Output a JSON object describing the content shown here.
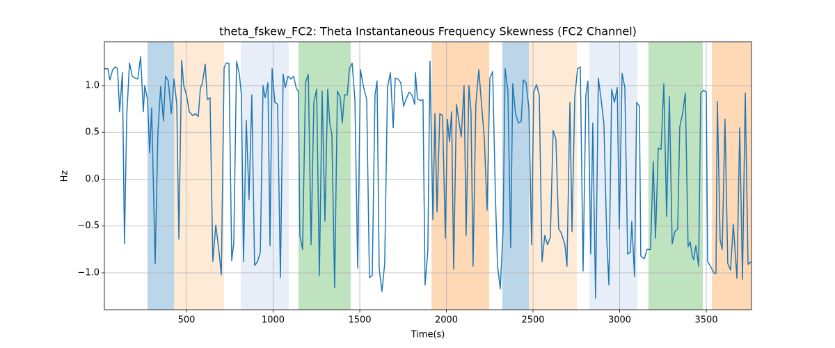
{
  "chart_data": {
    "type": "line",
    "title": "theta_fskew_FC2: Theta Instantaneous Frequency Skewness (FC2 Channel)",
    "x_label": "Time(s)",
    "y_label": "Hz",
    "color": "#1f77b4",
    "grid": true,
    "xlim": [
      26,
      3761
    ],
    "ylim": [
      -1.394,
      1.468
    ],
    "xticks": [
      500,
      1000,
      1500,
      2000,
      2500,
      3000,
      3500
    ],
    "yticks": [
      {
        "value": -1,
        "label": "−1.0"
      },
      {
        "value": -0.5,
        "label": "−0.5"
      },
      {
        "value": 0,
        "label": "0.0"
      },
      {
        "value": 0.5,
        "label": "0.5"
      },
      {
        "value": 1,
        "label": "1.0"
      }
    ],
    "shaded_regions": [
      {
        "start": 275,
        "end": 428,
        "color": "#1f77b4"
      },
      {
        "start": 428,
        "end": 717,
        "color": "#ffbb78"
      },
      {
        "start": 813,
        "end": 1090,
        "color": "#aec7e8"
      },
      {
        "start": 1146,
        "end": 1448,
        "color": "#2ca02c"
      },
      {
        "start": 1914,
        "end": 2247,
        "color": "#ff7f0e"
      },
      {
        "start": 2323,
        "end": 2476,
        "color": "#1f77b4"
      },
      {
        "start": 2476,
        "end": 2753,
        "color": "#ffbb78"
      },
      {
        "start": 2825,
        "end": 3102,
        "color": "#aec7e8"
      },
      {
        "start": 3166,
        "end": 3480,
        "color": "#2ca02c"
      },
      {
        "start": 3532,
        "end": 3761,
        "color": "#ff7f0e"
      }
    ],
    "x": [
      26,
      46,
      58,
      74,
      90,
      102,
      114,
      130,
      142,
      155,
      171,
      187,
      203,
      219,
      235,
      251,
      259,
      275,
      287,
      299,
      319,
      335,
      351,
      367,
      379,
      395,
      412,
      428,
      444,
      456,
      472,
      484,
      500,
      516,
      536,
      552,
      568,
      580,
      592,
      608,
      620,
      636,
      652,
      669,
      685,
      701,
      717,
      729,
      745,
      761,
      773,
      789,
      805,
      817,
      829,
      845,
      861,
      877,
      893,
      910,
      926,
      942,
      954,
      970,
      982,
      994,
      1010,
      1026,
      1042,
      1058,
      1070,
      1086,
      1102,
      1118,
      1134,
      1146,
      1154,
      1170,
      1187,
      1203,
      1219,
      1235,
      1251,
      1267,
      1283,
      1299,
      1315,
      1327,
      1339,
      1355,
      1371,
      1387,
      1399,
      1412,
      1428,
      1440,
      1456,
      1472,
      1488,
      1504,
      1520,
      1540,
      1556,
      1572,
      1588,
      1600,
      1612,
      1628,
      1644,
      1660,
      1677,
      1693,
      1705,
      1721,
      1737,
      1753,
      1769,
      1785,
      1801,
      1817,
      1821,
      1833,
      1849,
      1865,
      1877,
      1893,
      1905,
      1922,
      1934,
      1946,
      1962,
      1978,
      1994,
      2006,
      2018,
      2030,
      2042,
      2058,
      2074,
      2086,
      2102,
      2114,
      2130,
      2142,
      2154,
      2170,
      2187,
      2203,
      2219,
      2235,
      2251,
      2267,
      2283,
      2295,
      2311,
      2327,
      2339,
      2355,
      2371,
      2383,
      2399,
      2416,
      2432,
      2444,
      2460,
      2476,
      2492,
      2504,
      2520,
      2536,
      2552,
      2568,
      2584,
      2600,
      2616,
      2632,
      2648,
      2664,
      2684,
      2696,
      2713,
      2725,
      2741,
      2757,
      2773,
      2789,
      2805,
      2817,
      2833,
      2845,
      2861,
      2877,
      2893,
      2909,
      2926,
      2938,
      2954,
      2970,
      2986,
      2998,
      3014,
      3030,
      3046,
      3062,
      3070,
      3086,
      3098,
      3114,
      3122,
      3142,
      3158,
      3178,
      3194,
      3207,
      3223,
      3239,
      3255,
      3271,
      3287,
      3303,
      3319,
      3335,
      3347,
      3363,
      3379,
      3395,
      3407,
      3419,
      3427,
      3440,
      3456,
      3468,
      3484,
      3500,
      3508,
      3524,
      3544,
      3556,
      3564,
      3580,
      3592,
      3608,
      3624,
      3640,
      3656,
      3677,
      3693,
      3709,
      3725,
      3741,
      3761
    ],
    "values": [
      1.18,
      1.18,
      1.06,
      1.17,
      1.2,
      1.18,
      0.72,
      1.14,
      -0.69,
      0.67,
      1.24,
      1.1,
      1.08,
      1.07,
      1.31,
      0.72,
      1.0,
      0.85,
      0.28,
      0.76,
      -0.9,
      0.5,
      0.99,
      0.62,
      1.1,
      1.05,
      0.7,
      1.07,
      0.8,
      -0.64,
      1.27,
      1.0,
      0.9,
      0.72,
      0.68,
      0.7,
      0.67,
      0.97,
      1.03,
      1.23,
      0.85,
      0.87,
      -0.88,
      -0.49,
      -0.73,
      -1.02,
      1.19,
      1.24,
      1.24,
      -0.87,
      -0.68,
      1.26,
      1.12,
      0.9,
      -0.88,
      0.63,
      -0.22,
      0.9,
      -0.92,
      -0.88,
      -0.78,
      1.0,
      0.87,
      1.03,
      -0.71,
      1.18,
      0.82,
      0.8,
      -1.05,
      1.12,
      0.98,
      1.1,
      1.07,
      1.1,
      0.97,
      0.94,
      -0.6,
      -0.75,
      1.03,
      1.12,
      -0.7,
      0.82,
      0.96,
      -1.03,
      0.94,
      -0.45,
      0.96,
      0.6,
      0.48,
      -1.16,
      0.94,
      0.88,
      0.6,
      0.9,
      0.9,
      1.18,
      1.24,
      0.85,
      -0.95,
      1.17,
      1.0,
      0.85,
      -1.05,
      -1.03,
      0.9,
      1.05,
      -0.95,
      -1.2,
      -0.9,
      0.98,
      1.14,
      0.55,
      1.08,
      1.07,
      1.03,
      0.78,
      0.86,
      0.93,
      0.9,
      0.8,
      1.14,
      0.86,
      0.84,
      0.85,
      -1.13,
      -0.76,
      1.26,
      -0.43,
      0.7,
      -0.35,
      0.7,
      0.68,
      -0.63,
      0.64,
      0.4,
      0.72,
      -0.96,
      0.8,
      0.6,
      0.45,
      1.0,
      -0.6,
      1.0,
      0.72,
      -0.93,
      0.8,
      1.17,
      0.8,
      0.43,
      -0.33,
      1.08,
      1.15,
      -0.18,
      -0.92,
      -1.17,
      -0.55,
      1.18,
      0.94,
      -0.73,
      1.02,
      0.7,
      0.6,
      0.62,
      1.06,
      1.03,
      0.76,
      -0.7,
      0.93,
      1.01,
      0.9,
      -0.88,
      -0.6,
      -0.7,
      -0.62,
      0.52,
      0.43,
      -0.53,
      -0.58,
      -0.7,
      -0.93,
      0.82,
      -0.56,
      0.88,
      1.18,
      1.2,
      -0.98,
      0.9,
      1.05,
      -0.8,
      0.6,
      -1.27,
      1.08,
      0.85,
      0.6,
      -0.65,
      -1.13,
      0.96,
      0.82,
      0.98,
      -0.53,
      1.13,
      0.98,
      -0.8,
      -0.78,
      -0.45,
      -1.04,
      0.82,
      0.78,
      -0.82,
      -0.85,
      -0.75,
      -0.75,
      0.19,
      -0.63,
      0.33,
      0.32,
      1.02,
      -0.4,
      0.88,
      -0.69,
      -0.56,
      -0.53,
      0.56,
      0.7,
      0.92,
      -0.72,
      -0.67,
      -0.82,
      -0.86,
      -0.71,
      -0.93,
      0.92,
      0.95,
      0.93,
      -0.88,
      -0.93,
      -1.0,
      -1.01,
      0.83,
      -0.65,
      -0.75,
      0.64,
      -0.9,
      -0.97,
      -0.48,
      -1.06,
      0.55,
      -1.07,
      0.92,
      -0.91,
      -0.88
    ]
  }
}
